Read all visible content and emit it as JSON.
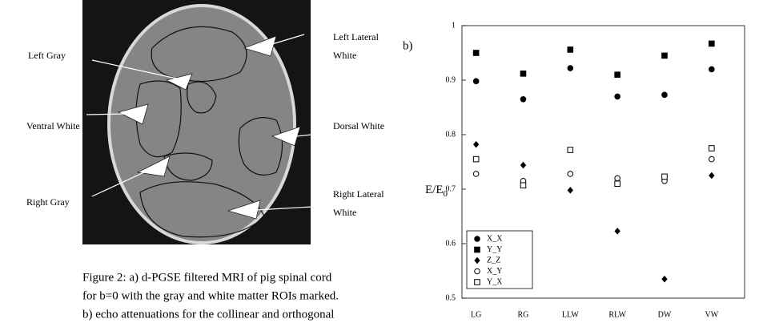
{
  "figure": {
    "labels": [
      "Left Gray",
      "Ventral White",
      "Right Gray",
      "Dorsal White"
    ],
    "left_lateral": [
      "Left Lateral",
      "White"
    ],
    "right_lateral": [
      "Right Lateral",
      "White"
    ],
    "panel_b": "b)"
  },
  "caption": [
    "Figure 2: a) d-PGSE filtered MRI of pig spinal cord",
    "for b=0 with the gray and white matter ROIs marked.",
    "b) echo attenuations for the collinear and orthogonal"
  ],
  "chart_data": {
    "type": "scatter",
    "ylabel": "E/E",
    "ylabel_subscript": "0",
    "categories": [
      "LG",
      "RG",
      "LLW",
      "RLW",
      "DW",
      "VW"
    ],
    "ylim": [
      0.5,
      1
    ],
    "yticks": [
      0.5,
      0.6,
      0.7,
      0.8,
      0.9,
      1
    ],
    "series": [
      {
        "name": "X_X",
        "color": "#000000",
        "marker": "circle",
        "filled": true,
        "values": [
          0.898,
          0.865,
          0.922,
          0.87,
          0.873,
          0.92
        ]
      },
      {
        "name": "Y_Y",
        "color": "#000000",
        "marker": "square",
        "filled": true,
        "values": [
          0.95,
          0.912,
          0.956,
          0.91,
          0.945,
          0.967
        ]
      },
      {
        "name": "Z_Z",
        "color": "#000000",
        "marker": "diamond",
        "filled": true,
        "values": [
          0.782,
          0.744,
          0.698,
          0.623,
          0.535,
          0.725
        ]
      },
      {
        "name": "X_Y",
        "color": "#000000",
        "marker": "circle",
        "filled": false,
        "values": [
          0.728,
          0.715,
          0.728,
          0.72,
          0.715,
          0.755
        ]
      },
      {
        "name": "Y_X",
        "color": "#000000",
        "marker": "square",
        "filled": false,
        "values": [
          0.755,
          0.707,
          0.772,
          0.71,
          0.723,
          0.775
        ]
      }
    ]
  }
}
